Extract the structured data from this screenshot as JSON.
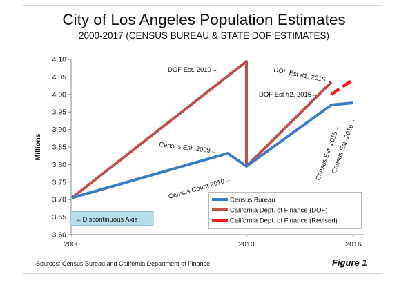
{
  "chart_data": {
    "type": "line",
    "title": "City of Los Angeles Population Estimates",
    "subtitle": "2000-2017 (CENSUS BUREAU & STATE DOF ESTIMATES)",
    "ylabel": "Millions",
    "xlabel": "",
    "ylim": [
      3.6,
      4.1
    ],
    "yticks": [
      "3.60",
      "3.65",
      "3.70",
      "3.75",
      "3.80",
      "3.85",
      "3.90",
      "3.95",
      "4.00",
      "4.05",
      "4.10"
    ],
    "xticks": [
      "2000",
      "2010",
      "2016"
    ],
    "grid": false,
    "legend_position": "bottom-right",
    "series": [
      {
        "name": "Census Bureau",
        "color": "#3c7cc4",
        "points": [
          {
            "x": "2000",
            "y": 3.705
          },
          {
            "x": "2009",
            "y": 3.832
          },
          {
            "x": "2010",
            "y": 3.795
          },
          {
            "x": "2015",
            "y": 3.97
          },
          {
            "x": "2016",
            "y": 3.976
          }
        ]
      },
      {
        "name": "California Dept. of Finance (DOF)",
        "color": "#c0504d",
        "points": [
          {
            "x": "2000",
            "y": 3.705
          },
          {
            "x": "2010",
            "y": 4.094
          },
          {
            "x": "2010",
            "y": 3.795
          },
          {
            "x": "2015",
            "y": 4.035
          }
        ]
      },
      {
        "name": "California Dept. of Finance (Revised)",
        "color": "#ff1a1a",
        "dashed": true,
        "points": [
          {
            "x": "2015",
            "y": 4.0
          },
          {
            "x": "2016",
            "y": 4.043
          }
        ]
      }
    ],
    "annotations": [
      {
        "text": "DOF Est. 2010→"
      },
      {
        "text": "DOF Est #1. 2015→"
      },
      {
        "text": "DOF Est #2. 2015→"
      },
      {
        "text": "Census Est. 2009→"
      },
      {
        "text": "Census Count 2010→"
      },
      {
        "text": "Census Est. 2015→"
      },
      {
        "text": "Census Est. 2016→"
      }
    ],
    "note_box": {
      "text": "←Discontinuous Axis",
      "fill": "#b7dee8"
    }
  },
  "footer": {
    "source": "Sources:  Census Bureau and California  Department of Finance",
    "figure": "Figure 1"
  }
}
